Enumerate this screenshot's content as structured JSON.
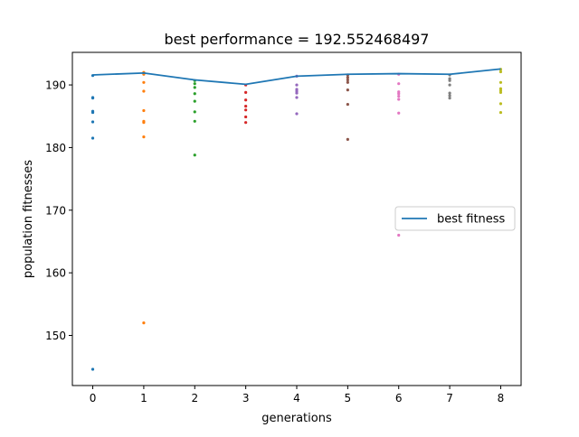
{
  "chart_data": {
    "type": "scatter",
    "title": "best performance = 192.552468497",
    "xlabel": "generations",
    "ylabel": "population fitnesses",
    "xlim": [
      -0.4,
      8.4
    ],
    "ylim": [
      142.0,
      195.2
    ],
    "xticks": [
      0,
      1,
      2,
      3,
      4,
      5,
      6,
      7,
      8
    ],
    "yticks": [
      150,
      160,
      170,
      180,
      190
    ],
    "grid": false,
    "legend": {
      "placement": "center-right",
      "entries": [
        "best fitness"
      ]
    },
    "colors": {
      "best_line": "#1f77b4",
      "generation_palette": [
        "#1f77b4",
        "#ff7f0e",
        "#2ca02c",
        "#d62728",
        "#9467bd",
        "#8c564b",
        "#e377c2",
        "#7f7f7f",
        "#bcbd22"
      ]
    },
    "best_fitness": {
      "name": "best fitness",
      "x": [
        0,
        1,
        2,
        3,
        4,
        5,
        6,
        7,
        8
      ],
      "y": [
        191.6,
        191.9,
        190.8,
        190.1,
        191.4,
        191.7,
        191.8,
        191.7,
        192.55
      ]
    },
    "population": [
      {
        "generation": 0,
        "values": [
          191.5,
          188.0,
          187.9,
          185.8,
          185.6,
          184.1,
          181.5,
          144.6
        ]
      },
      {
        "generation": 1,
        "values": [
          192.0,
          191.7,
          190.4,
          189.0,
          185.9,
          184.2,
          184.0,
          181.7,
          152.0
        ]
      },
      {
        "generation": 2,
        "values": [
          190.7,
          190.2,
          189.6,
          188.6,
          187.4,
          185.7,
          184.2,
          178.8
        ]
      },
      {
        "generation": 3,
        "values": [
          190.0,
          188.8,
          187.6,
          186.6,
          186.0,
          184.9,
          184.0
        ]
      },
      {
        "generation": 4,
        "values": [
          191.4,
          190.0,
          189.3,
          189.0,
          188.7,
          188.0,
          185.4
        ]
      },
      {
        "generation": 5,
        "values": [
          191.6,
          191.2,
          190.8,
          190.4,
          189.2,
          186.9,
          181.3
        ]
      },
      {
        "generation": 6,
        "values": [
          191.7,
          190.2,
          188.9,
          188.6,
          188.2,
          187.7,
          185.5,
          166.0
        ]
      },
      {
        "generation": 7,
        "values": [
          191.6,
          191.0,
          190.7,
          190.0,
          188.7,
          188.3,
          187.9
        ]
      },
      {
        "generation": 8,
        "values": [
          192.5,
          192.1,
          190.4,
          189.4,
          189.1,
          188.8,
          187.0,
          185.6
        ]
      }
    ]
  }
}
